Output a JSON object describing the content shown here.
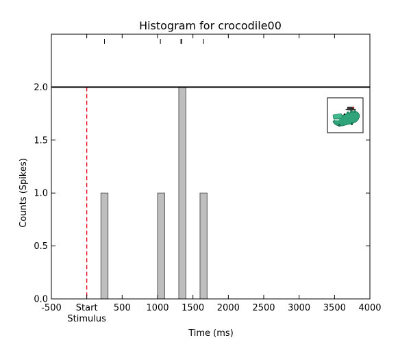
{
  "chart_data": {
    "type": "bar",
    "title": "Histogram for crocodile00",
    "xlabel": "Time (ms)",
    "ylabel": "Counts (Spikes)",
    "xlim": [
      -500,
      4000
    ],
    "ylim": [
      0,
      2.5
    ],
    "x_ticks": [
      {
        "value": -500,
        "label": "-500"
      },
      {
        "value": 0,
        "label": "Start"
      },
      {
        "value": 500,
        "label": "500"
      },
      {
        "value": 1000,
        "label": "1000"
      },
      {
        "value": 1500,
        "label": "1500"
      },
      {
        "value": 2000,
        "label": "2000"
      },
      {
        "value": 2500,
        "label": "2500"
      },
      {
        "value": 3000,
        "label": "3000"
      },
      {
        "value": 3500,
        "label": "3500"
      },
      {
        "value": 4000,
        "label": "4000"
      }
    ],
    "x_sublabel": "Stimulus",
    "y_ticks": [
      {
        "value": 0,
        "label": "0.0"
      },
      {
        "value": 0.5,
        "label": "0.5"
      },
      {
        "value": 1.0,
        "label": "1.0"
      },
      {
        "value": 1.5,
        "label": "1.5"
      },
      {
        "value": 2.0,
        "label": "2.0"
      }
    ],
    "bar_width": 100,
    "bars": [
      {
        "x": 200,
        "value": 1
      },
      {
        "x": 1000,
        "value": 1
      },
      {
        "x": 1300,
        "value": 2
      },
      {
        "x": 1600,
        "value": 1
      }
    ],
    "spike_times": [
      250,
      1040,
      1330,
      1340,
      1650
    ],
    "stimulus_line_x": 0,
    "reference_line_y": 2.0,
    "grid": false,
    "bar_color": "#bebebe",
    "stimulus_line_color": "#e8001c"
  },
  "inset": {
    "icon": "crocodile-icon"
  }
}
